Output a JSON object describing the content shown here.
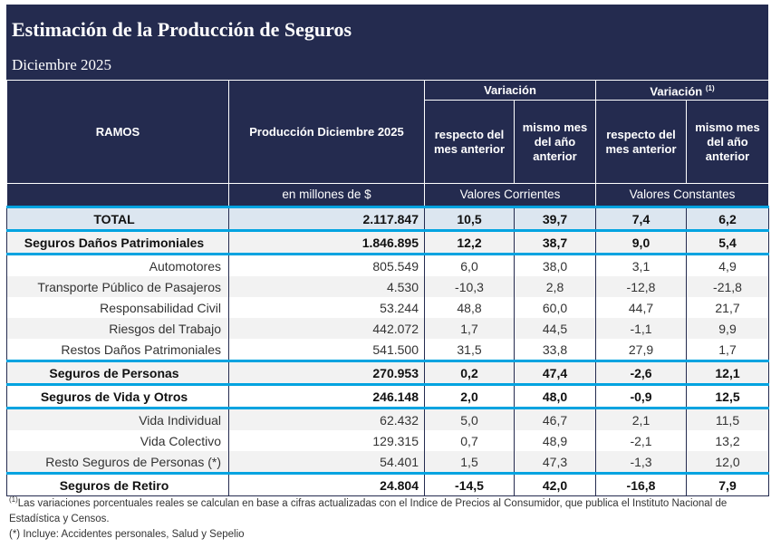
{
  "title": "Estimación de la Producción de Seguros",
  "subtitle": "Diciembre 2025",
  "headers": {
    "ramos": "RAMOS",
    "produccion": "Producción Diciembre 2025",
    "unidad": "en millones de $",
    "variacion1": "Variación",
    "variacion2": "Variación",
    "variacion2_note": "(1)",
    "respecto": "respecto del mes anterior",
    "mismo": "mismo mes del año anterior",
    "corrientes": "Valores Corrientes",
    "constantes": "Valores Constantes"
  },
  "rows": [
    {
      "ramo": "TOTAL",
      "prod": "2.117.847",
      "v1": "10,5",
      "v2": "39,7",
      "v3": "7,4",
      "v4": "6,2"
    },
    {
      "ramo": "Seguros Daños Patrimoniales",
      "prod": "1.846.895",
      "v1": "12,2",
      "v2": "38,7",
      "v3": "9,0",
      "v4": "5,4"
    },
    {
      "ramo": "Automotores",
      "prod": "805.549",
      "v1": "6,0",
      "v2": "38,0",
      "v3": "3,1",
      "v4": "4,9"
    },
    {
      "ramo": "Transporte Público de Pasajeros",
      "prod": "4.530",
      "v1": "-10,3",
      "v2": "2,8",
      "v3": "-12,8",
      "v4": "-21,8"
    },
    {
      "ramo": "Responsabilidad Civil",
      "prod": "53.244",
      "v1": "48,8",
      "v2": "60,0",
      "v3": "44,7",
      "v4": "21,7"
    },
    {
      "ramo": "Riesgos del Trabajo",
      "prod": "442.072",
      "v1": "1,7",
      "v2": "44,5",
      "v3": "-1,1",
      "v4": "9,9"
    },
    {
      "ramo": "Restos Daños Patrimoniales",
      "prod": "541.500",
      "v1": "31,5",
      "v2": "33,8",
      "v3": "27,9",
      "v4": "1,7"
    },
    {
      "ramo": "Seguros de Personas",
      "prod": "270.953",
      "v1": "0,2",
      "v2": "47,4",
      "v3": "-2,6",
      "v4": "12,1"
    },
    {
      "ramo": "Seguros de Vida y Otros",
      "prod": "246.148",
      "v1": "2,0",
      "v2": "48,0",
      "v3": "-0,9",
      "v4": "12,5"
    },
    {
      "ramo": "Vida Individual",
      "prod": "62.432",
      "v1": "5,0",
      "v2": "46,7",
      "v3": "2,1",
      "v4": "11,5"
    },
    {
      "ramo": "Vida Colectivo",
      "prod": "129.315",
      "v1": "0,7",
      "v2": "48,9",
      "v3": "-2,1",
      "v4": "13,2"
    },
    {
      "ramo": "Resto Seguros de Personas (*)",
      "prod": "54.401",
      "v1": "1,5",
      "v2": "47,3",
      "v3": "-1,3",
      "v4": "12,0"
    },
    {
      "ramo": "Seguros de Retiro",
      "prod": "24.804",
      "v1": "-14,5",
      "v2": "42,0",
      "v3": "-16,8",
      "v4": "7,9"
    }
  ],
  "footnotes": {
    "note1_mark": "(1)",
    "note1": "Las variaciones porcentuales reales se calculan en base a cifras actualizadas con el Indice de Precios al Consumidor, que publica el Instituto Nacional de Estadística y Censos.",
    "note2": "(*) Incluye: Accidentes personales, Salud y Sepelio"
  },
  "colors": {
    "header": "#242B4F",
    "accent": "#00A3E0",
    "total_bg": "#DCE6F0",
    "alt_bg": "#F2F2F2"
  }
}
